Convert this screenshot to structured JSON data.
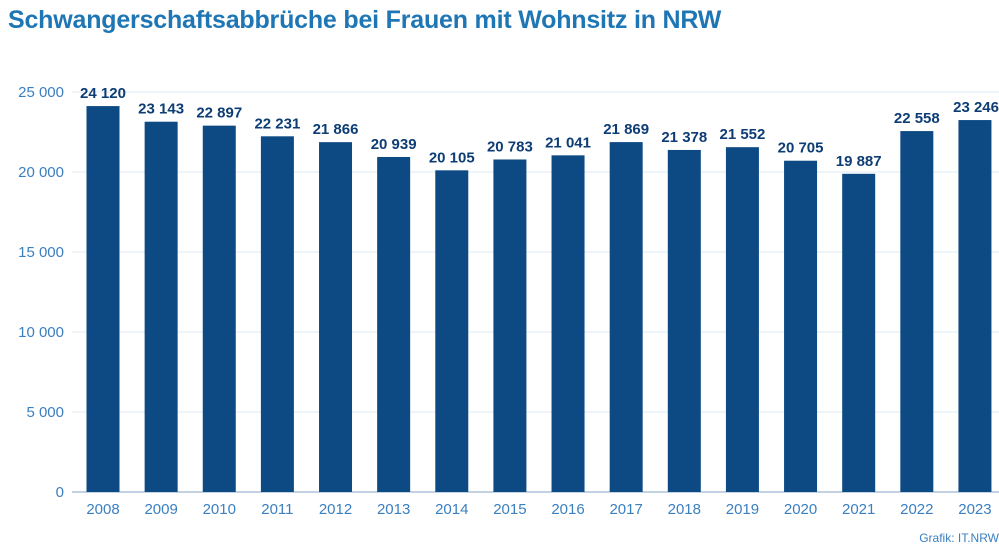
{
  "chart_data": {
    "type": "bar",
    "title": "Schwangerschaftsabbrüche bei Frauen mit Wohnsitz in NRW",
    "xlabel": "",
    "ylabel": "",
    "categories": [
      "2008",
      "2009",
      "2010",
      "2011",
      "2012",
      "2013",
      "2014",
      "2015",
      "2016",
      "2017",
      "2018",
      "2019",
      "2020",
      "2021",
      "2022",
      "2023"
    ],
    "values": [
      24120,
      23143,
      22897,
      22231,
      21866,
      20939,
      20105,
      20783,
      21041,
      21869,
      21378,
      21552,
      20705,
      19887,
      22558,
      23246
    ],
    "value_labels": [
      "24 120",
      "23 143",
      "22 897",
      "22 231",
      "21 866",
      "20 939",
      "20 105",
      "20 783",
      "21 041",
      "21 869",
      "21 378",
      "21 552",
      "20 705",
      "19 887",
      "22 558",
      "23 246"
    ],
    "ylim": [
      0,
      25000
    ],
    "yticks": [
      0,
      5000,
      10000,
      15000,
      20000,
      25000
    ],
    "ytick_labels": [
      "0",
      "5 000",
      "10 000",
      "15 000",
      "20 000",
      "25 000"
    ],
    "grid": true,
    "bar_color": "#0d4a84",
    "label_color": "#0d3d74",
    "tick_color": "#3a7fc0",
    "title_color": "#1f76b4"
  },
  "source": "Grafik: IT.NRW"
}
